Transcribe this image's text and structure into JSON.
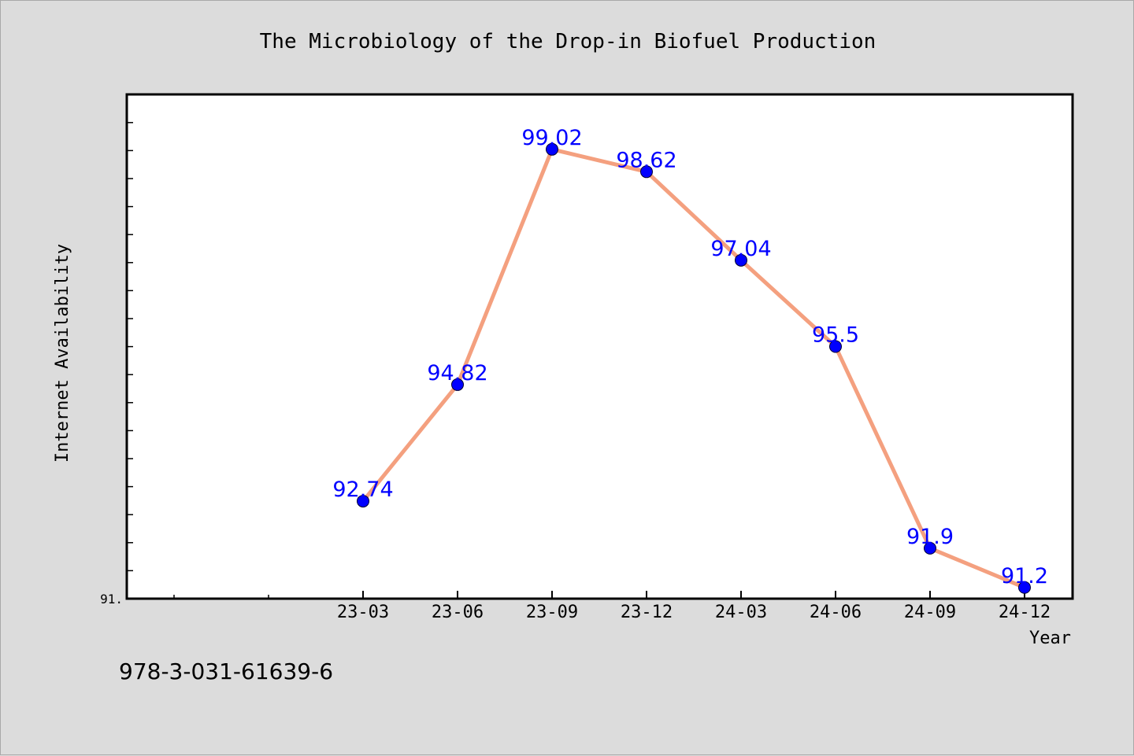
{
  "chart_data": {
    "type": "line",
    "title": "The Microbiology of the Drop-in Biofuel Production",
    "xlabel": "Year",
    "ylabel": "Internet Availability",
    "categories": [
      "23-03",
      "23-06",
      "23-09",
      "23-12",
      "24-03",
      "24-06",
      "24-09",
      "24-12"
    ],
    "values": [
      92.74,
      94.82,
      99.02,
      98.62,
      97.04,
      95.5,
      91.9,
      91.2
    ],
    "data_labels": [
      "92.74",
      "94.82",
      "99.02",
      "98.62",
      "97.04",
      "95.5",
      "91.9",
      "91.2"
    ],
    "y_tick_label": "91.",
    "ylim": [
      91.0,
      100.0
    ],
    "grid": false,
    "legend": "none"
  },
  "footer": {
    "isbn": "978-3-031-61639-6"
  },
  "colors": {
    "background": "#dcdcdc",
    "plot_background": "#ffffff",
    "line": "#f4a07f",
    "marker": "#0000ff",
    "data_label": "#0000ff",
    "axis": "#000000"
  }
}
